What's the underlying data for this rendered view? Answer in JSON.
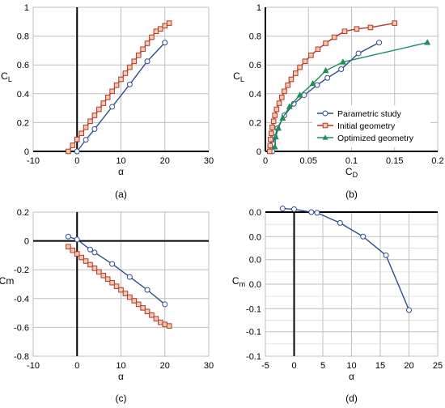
{
  "colors": {
    "blue": "#2F4D89",
    "red": "#B3362E",
    "green": "#1E8E5B",
    "grid": "#BFBFBF",
    "zero_axis": "#000000"
  },
  "legend": [
    {
      "label": "Parametric study",
      "color": "#2F4D89",
      "marker": "circle"
    },
    {
      "label": "Initial geometry",
      "color": "#B3362E",
      "marker": "square"
    },
    {
      "label": "Optimized geometry",
      "color": "#1E8E5B",
      "marker": "triangle"
    }
  ],
  "chart_data": [
    {
      "id": "a",
      "type": "line",
      "caption": "(a)",
      "xlabel": "α",
      "ylabel": {
        "main": "C",
        "sub": "L"
      },
      "xlim": [
        -10,
        30
      ],
      "ylim": [
        0,
        1
      ],
      "x_ticks": [
        -10,
        0,
        10,
        20,
        30
      ],
      "y_ticks": [
        0,
        0.2,
        0.4,
        0.6,
        0.8,
        1
      ],
      "x_tick_labels": [
        "-10",
        "0",
        "10",
        "20",
        "30"
      ],
      "y_tick_labels": [
        "0",
        "0.2",
        "0.4",
        "0.6",
        "0.8",
        "1"
      ],
      "grid": true,
      "series": [
        {
          "color": "#2F4D89",
          "marker": "circle",
          "x": [
            0,
            2,
            4,
            8,
            12,
            16,
            20
          ],
          "y": [
            0.0,
            0.08,
            0.155,
            0.31,
            0.465,
            0.625,
            0.755
          ]
        },
        {
          "color": "#B3362E",
          "marker": "square",
          "x": [
            -2,
            -1,
            0,
            1,
            2,
            3,
            4,
            5,
            6,
            7,
            8,
            9,
            10,
            11,
            12,
            13,
            14,
            15,
            16,
            17,
            18,
            19,
            20,
            21
          ],
          "y": [
            0.0,
            0.042,
            0.083,
            0.125,
            0.167,
            0.209,
            0.25,
            0.292,
            0.334,
            0.375,
            0.417,
            0.459,
            0.5,
            0.542,
            0.584,
            0.625,
            0.667,
            0.709,
            0.75,
            0.792,
            0.833,
            0.85,
            0.872,
            0.89
          ]
        }
      ]
    },
    {
      "id": "b",
      "type": "line",
      "caption": "(b)",
      "xlabel": {
        "main": "C",
        "sub": "D"
      },
      "ylabel": {
        "main": "C",
        "sub": "L"
      },
      "xlim": [
        0,
        0.2
      ],
      "ylim": [
        0,
        1
      ],
      "x_ticks": [
        0,
        0.05,
        0.1,
        0.15,
        0.2
      ],
      "y_ticks": [
        0,
        0.2,
        0.4,
        0.6,
        0.8,
        1
      ],
      "x_tick_labels": [
        "0",
        "0.05",
        "0.1",
        "0.15",
        "0.2"
      ],
      "y_tick_labels": [
        "0",
        "0.2",
        "0.4",
        "0.6",
        "0.8",
        "1"
      ],
      "grid": true,
      "legend_position": "center-right",
      "series": [
        {
          "name": "Parametric study",
          "color": "#2F4D89",
          "marker": "circle",
          "x": [
            0.008,
            0.009,
            0.011,
            0.014,
            0.022,
            0.033,
            0.045,
            0.06,
            0.072,
            0.088,
            0.108,
            0.132
          ],
          "y": [
            0.0,
            0.05,
            0.1,
            0.16,
            0.25,
            0.33,
            0.39,
            0.46,
            0.51,
            0.57,
            0.68,
            0.755
          ]
        },
        {
          "name": "Initial geometry",
          "color": "#B3362E",
          "marker": "square",
          "x": [
            0.005,
            0.0055,
            0.006,
            0.007,
            0.008,
            0.0095,
            0.011,
            0.013,
            0.016,
            0.019,
            0.022,
            0.026,
            0.03,
            0.035,
            0.04,
            0.046,
            0.053,
            0.061,
            0.07,
            0.08,
            0.092,
            0.106,
            0.122,
            0.15
          ],
          "y": [
            0.0,
            0.04,
            0.083,
            0.125,
            0.167,
            0.209,
            0.25,
            0.292,
            0.334,
            0.375,
            0.417,
            0.459,
            0.5,
            0.542,
            0.584,
            0.625,
            0.667,
            0.709,
            0.75,
            0.792,
            0.833,
            0.85,
            0.86,
            0.89
          ]
        },
        {
          "name": "Optimized geometry",
          "color": "#1E8E5B",
          "marker": "triangle",
          "x": [
            0.011,
            0.012,
            0.015,
            0.02,
            0.028,
            0.04,
            0.055,
            0.07,
            0.09,
            0.188
          ],
          "y": [
            0.03,
            0.1,
            0.16,
            0.23,
            0.31,
            0.39,
            0.47,
            0.56,
            0.62,
            0.755
          ]
        }
      ]
    },
    {
      "id": "c",
      "type": "line",
      "caption": "(c)",
      "xlabel": "α",
      "ylabel": "Cm",
      "xlim": [
        -10,
        30
      ],
      "ylim": [
        -0.8,
        0.2
      ],
      "x_ticks": [
        -10,
        0,
        10,
        20,
        30
      ],
      "y_ticks": [
        -0.8,
        -0.6,
        -0.4,
        -0.2,
        0,
        0.2
      ],
      "x_tick_labels": [
        "-10",
        "0",
        "10",
        "20",
        "30"
      ],
      "y_tick_labels": [
        "-0.8",
        "-0.6",
        "-0.4",
        "-0.2",
        "0",
        "0.2"
      ],
      "grid": true,
      "series": [
        {
          "color": "#2F4D89",
          "marker": "circle",
          "x": [
            -2,
            0,
            3,
            4,
            8,
            12,
            16,
            20
          ],
          "y": [
            0.03,
            0.01,
            -0.06,
            -0.08,
            -0.16,
            -0.25,
            -0.34,
            -0.44
          ]
        },
        {
          "color": "#B3362E",
          "marker": "square",
          "x": [
            -2,
            -1,
            0,
            1,
            2,
            3,
            4,
            5,
            6,
            7,
            8,
            9,
            10,
            11,
            12,
            13,
            14,
            15,
            16,
            17,
            18,
            19,
            20,
            21
          ],
          "y": [
            -0.04,
            -0.065,
            -0.09,
            -0.115,
            -0.14,
            -0.165,
            -0.19,
            -0.215,
            -0.24,
            -0.265,
            -0.29,
            -0.315,
            -0.34,
            -0.365,
            -0.39,
            -0.415,
            -0.44,
            -0.465,
            -0.49,
            -0.515,
            -0.54,
            -0.565,
            -0.58,
            -0.59
          ]
        }
      ]
    },
    {
      "id": "d",
      "type": "line",
      "caption": "(d)",
      "xlabel": "α",
      "ylabel": {
        "main": "C",
        "sub": "m"
      },
      "xlim": [
        -5,
        25
      ],
      "ylim": [
        -0.1,
        0.0
      ],
      "x_ticks": [
        -5,
        0,
        5,
        10,
        15,
        20,
        25
      ],
      "y_ticks": [
        -0.1,
        -0.083,
        -0.067,
        -0.05,
        -0.033,
        -0.017,
        0.0
      ],
      "x_tick_labels": [
        "-5",
        "0",
        "5",
        "10",
        "15",
        "20",
        "25"
      ],
      "y_tick_labels": [
        "-0.1",
        "-0.1",
        "-0.1",
        "0.0",
        "0.0",
        "0.0",
        "0.0"
      ],
      "minor_grid_y": 2,
      "grid": true,
      "series": [
        {
          "color": "#2F4D89",
          "marker": "circle",
          "x": [
            -2,
            0,
            3,
            4,
            8,
            12,
            16,
            20
          ],
          "y": [
            0.0025,
            0.002,
            0.0,
            -0.0005,
            -0.0075,
            -0.017,
            -0.03,
            -0.068
          ]
        }
      ]
    }
  ]
}
